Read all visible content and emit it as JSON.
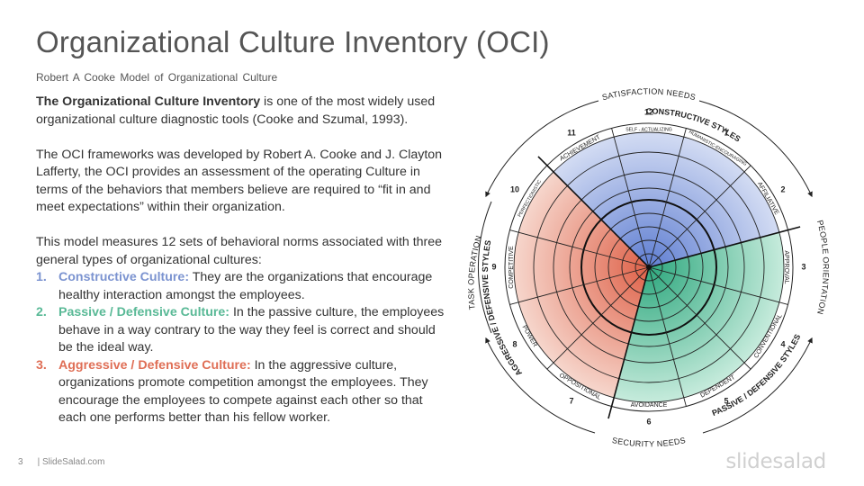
{
  "title": "Organizational Culture Inventory (OCI)",
  "subtitle": "Robert A Cooke Model of Organizational Culture",
  "intro": {
    "bold": "The Organizational Culture Inventory",
    "rest": " is one of the most widely used organizational culture diagnostic tools (Cooke and Szumal, 1993)."
  },
  "paragraph2": "The OCI frameworks was developed by Robert A. Cooke and J. Clayton Lafferty, the OCI provides an assessment of the operating Culture in terms of the behaviors that members believe are required to “fit in and meet expectations” within their organization.",
  "paragraph3": "This model measures 12 sets of behavioral norms associated with three general types of organizational cultures:",
  "cultures": [
    {
      "num": "1.",
      "name": "Constructive Culture:",
      "text": " They are the organizations that encourage healthy interaction amongst the employees.",
      "color": "#7b93d0"
    },
    {
      "num": "2.",
      "name": "Passive / Defensive Culture:",
      "text": " In the passive culture, the employees behave in a way contrary to the way they feel is correct and should be the ideal way.",
      "color": "#59b996"
    },
    {
      "num": "3.",
      "name": "Aggressive / Defensive Culture:",
      "text": " In the aggressive culture, organizations promote competition amongst the employees. They encourage the employees to compete against each other so that each one performs better than his fellow worker.",
      "color": "#df6e55"
    }
  ],
  "footer": {
    "page": "3",
    "site": "| SlideSalad.com",
    "brand": "slidesalad"
  },
  "wheel": {
    "outer_labels": {
      "top": "SATISFACTION NEEDS",
      "right": "PEOPLE ORIENTATION",
      "bottom": "SECURITY NEEDS",
      "left": "TASK OPERATION"
    },
    "group_labels": {
      "constructive": "CONSTRUCTIVE STYLES",
      "passive": "PASSIVE / DEFENSIVE STYLES",
      "aggressive": "AGGRESSIVE / DEFENSIVE STYLES"
    },
    "segments": [
      {
        "num": "12",
        "name": "SELF - ACTUALIZING"
      },
      {
        "num": "1",
        "name": "HUMANISTIC-ENCOURAGING"
      },
      {
        "num": "2",
        "name": "AFFILIATIVE"
      },
      {
        "num": "3",
        "name": "APPROVAL"
      },
      {
        "num": "4",
        "name": "CONVENTIONAL"
      },
      {
        "num": "5",
        "name": "DEPENDENT"
      },
      {
        "num": "6",
        "name": "AVOIDANCE"
      },
      {
        "num": "7",
        "name": "OPPOSITIONAL"
      },
      {
        "num": "8",
        "name": "POWER"
      },
      {
        "num": "9",
        "name": "COMPETITIVE"
      },
      {
        "num": "10",
        "name": "PERFECTIONISTIC"
      },
      {
        "num": "11",
        "name": "ACHIEVEMENT"
      }
    ],
    "colors": {
      "constructive": "#7b93d0",
      "passive": "#59b996",
      "aggressive": "#df6e55"
    }
  }
}
